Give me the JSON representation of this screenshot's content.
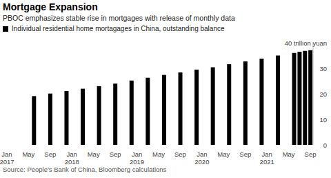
{
  "chart_data": {
    "type": "bar",
    "title": "Mortgage Expansion",
    "subtitle": "PBOC emphasizes stable rise in mortgages with release of monthly data",
    "source": "Source: People's Bank of China, Bloomberg calculations",
    "categories": [
      "Jan 2017",
      null,
      null,
      null,
      "May",
      null,
      null,
      null,
      "Sep",
      null,
      null,
      null,
      "Jan 2018",
      null,
      null,
      null,
      "May",
      null,
      null,
      null,
      "Sep",
      null,
      null,
      null,
      "Jan 2019",
      null,
      null,
      null,
      "May",
      null,
      null,
      null,
      "Sep",
      null,
      null,
      null,
      "Jan 2020",
      null,
      null,
      null,
      "May",
      null,
      null,
      null,
      "Sep",
      null,
      null,
      null,
      "Jan 2021",
      null,
      null,
      null,
      "May",
      null,
      null,
      null,
      "Sep"
    ],
    "series": [
      {
        "name": "Individual residential home mortagages in China, outstanding balance",
        "color": "#000000",
        "values": [
          null,
          null,
          null,
          null,
          null,
          19.1,
          null,
          null,
          20.1,
          null,
          null,
          21.1,
          null,
          null,
          22.0,
          null,
          null,
          23.0,
          null,
          null,
          24.0,
          null,
          null,
          25.2,
          null,
          null,
          26.3,
          null,
          null,
          27.4,
          null,
          null,
          28.4,
          null,
          null,
          29.5,
          null,
          null,
          30.4,
          null,
          null,
          31.6,
          null,
          null,
          32.7,
          null,
          null,
          33.8,
          null,
          null,
          35.0,
          null,
          null,
          36.0,
          36.5,
          36.8,
          37.1
        ]
      }
    ],
    "ylim": [
      0,
      40
    ],
    "yticks": [
      0,
      10,
      20,
      30,
      {
        "value": 40,
        "label": "40 trillion yuan"
      }
    ],
    "grid": false,
    "legend": "top left"
  }
}
